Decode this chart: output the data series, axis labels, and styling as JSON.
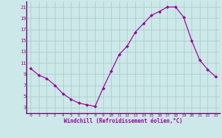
{
  "hours": [
    0,
    1,
    2,
    3,
    4,
    5,
    6,
    7,
    8,
    9,
    10,
    11,
    12,
    13,
    14,
    15,
    16,
    17,
    18,
    19,
    20,
    21,
    22,
    23
  ],
  "values": [
    10.0,
    8.8,
    8.2,
    7.0,
    5.5,
    4.5,
    3.8,
    3.5,
    3.2,
    6.5,
    9.5,
    12.5,
    14.0,
    16.5,
    18.0,
    19.5,
    20.2,
    21.0,
    21.0,
    19.2,
    15.0,
    11.5,
    9.8,
    8.5
  ],
  "line_color": "#990099",
  "marker": "D",
  "marker_size": 2.2,
  "bg_color": "#cce8e8",
  "grid_color": "#aacccc",
  "tick_label_color": "#990099",
  "xlabel": "Windchill (Refroidissement éolien,°C)",
  "xlabel_color": "#990099",
  "ylim": [
    2,
    22
  ],
  "yticks": [
    3,
    5,
    7,
    9,
    11,
    13,
    15,
    17,
    19,
    21
  ],
  "xticks": [
    0,
    1,
    2,
    3,
    4,
    5,
    6,
    7,
    8,
    9,
    10,
    11,
    12,
    13,
    14,
    15,
    16,
    17,
    18,
    19,
    20,
    21,
    22,
    23
  ]
}
